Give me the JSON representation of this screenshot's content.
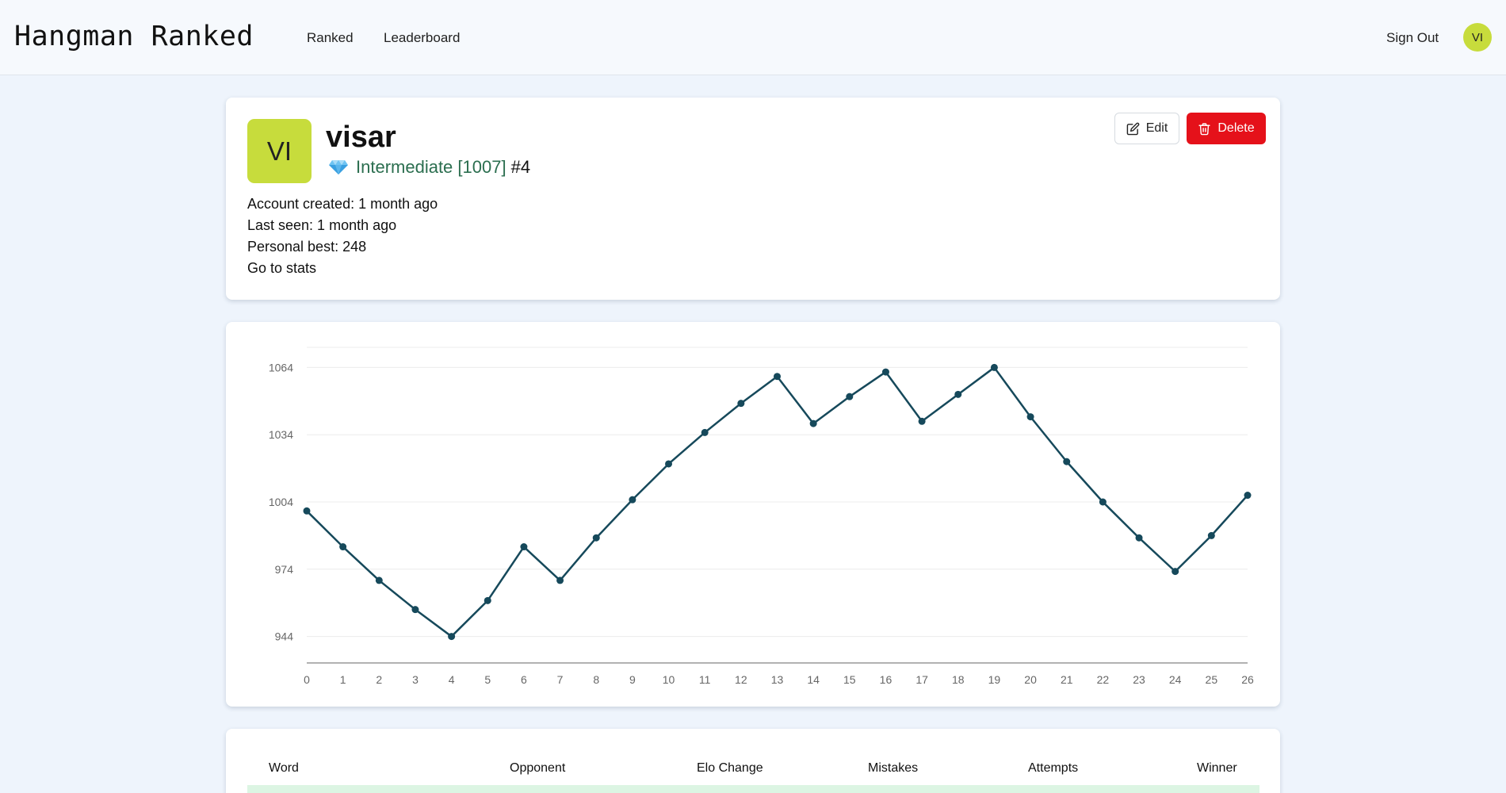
{
  "header": {
    "brand": "Hangman Ranked",
    "nav": {
      "ranked": "Ranked",
      "leaderboard": "Leaderboard"
    },
    "sign_out": "Sign Out",
    "avatar_initials": "VI"
  },
  "profile": {
    "avatar_initials": "VI",
    "username": "visar",
    "rank_name": "Intermediate [1007]",
    "rank_position": "#4",
    "account_created": "Account created: 1 month ago",
    "last_seen": "Last seen: 1 month ago",
    "personal_best": "Personal best: 248",
    "stats_link": "Go to stats",
    "edit_label": "Edit",
    "delete_label": "Delete",
    "colors": {
      "avatar": "#c7dc3c",
      "rank_text": "#2b6e4f",
      "delete": "#e5111a"
    }
  },
  "chart_data": {
    "type": "line",
    "x": [
      0,
      1,
      2,
      3,
      4,
      5,
      6,
      7,
      8,
      9,
      10,
      11,
      12,
      13,
      14,
      15,
      16,
      17,
      18,
      19,
      20,
      21,
      22,
      23,
      24,
      25,
      26
    ],
    "series": [
      {
        "values": [
          1000,
          984,
          969,
          956,
          944,
          960,
          984,
          969,
          988,
          1005,
          1021,
          1035,
          1048,
          1060,
          1039,
          1051,
          1062,
          1040,
          1052,
          1064,
          1042,
          1022,
          1004,
          988,
          973,
          989,
          1007
        ]
      }
    ],
    "yticks": [
      944,
      974,
      1004,
      1034,
      1064
    ],
    "ylim": [
      935,
      1073
    ],
    "xlim": [
      0,
      26
    ],
    "grid": true,
    "line_color": "#16495b"
  },
  "table": {
    "columns": [
      "Word",
      "Opponent",
      "Elo Change",
      "Mistakes",
      "Attempts",
      "Winner"
    ],
    "row_highlight_color": "#dcf5e3"
  }
}
